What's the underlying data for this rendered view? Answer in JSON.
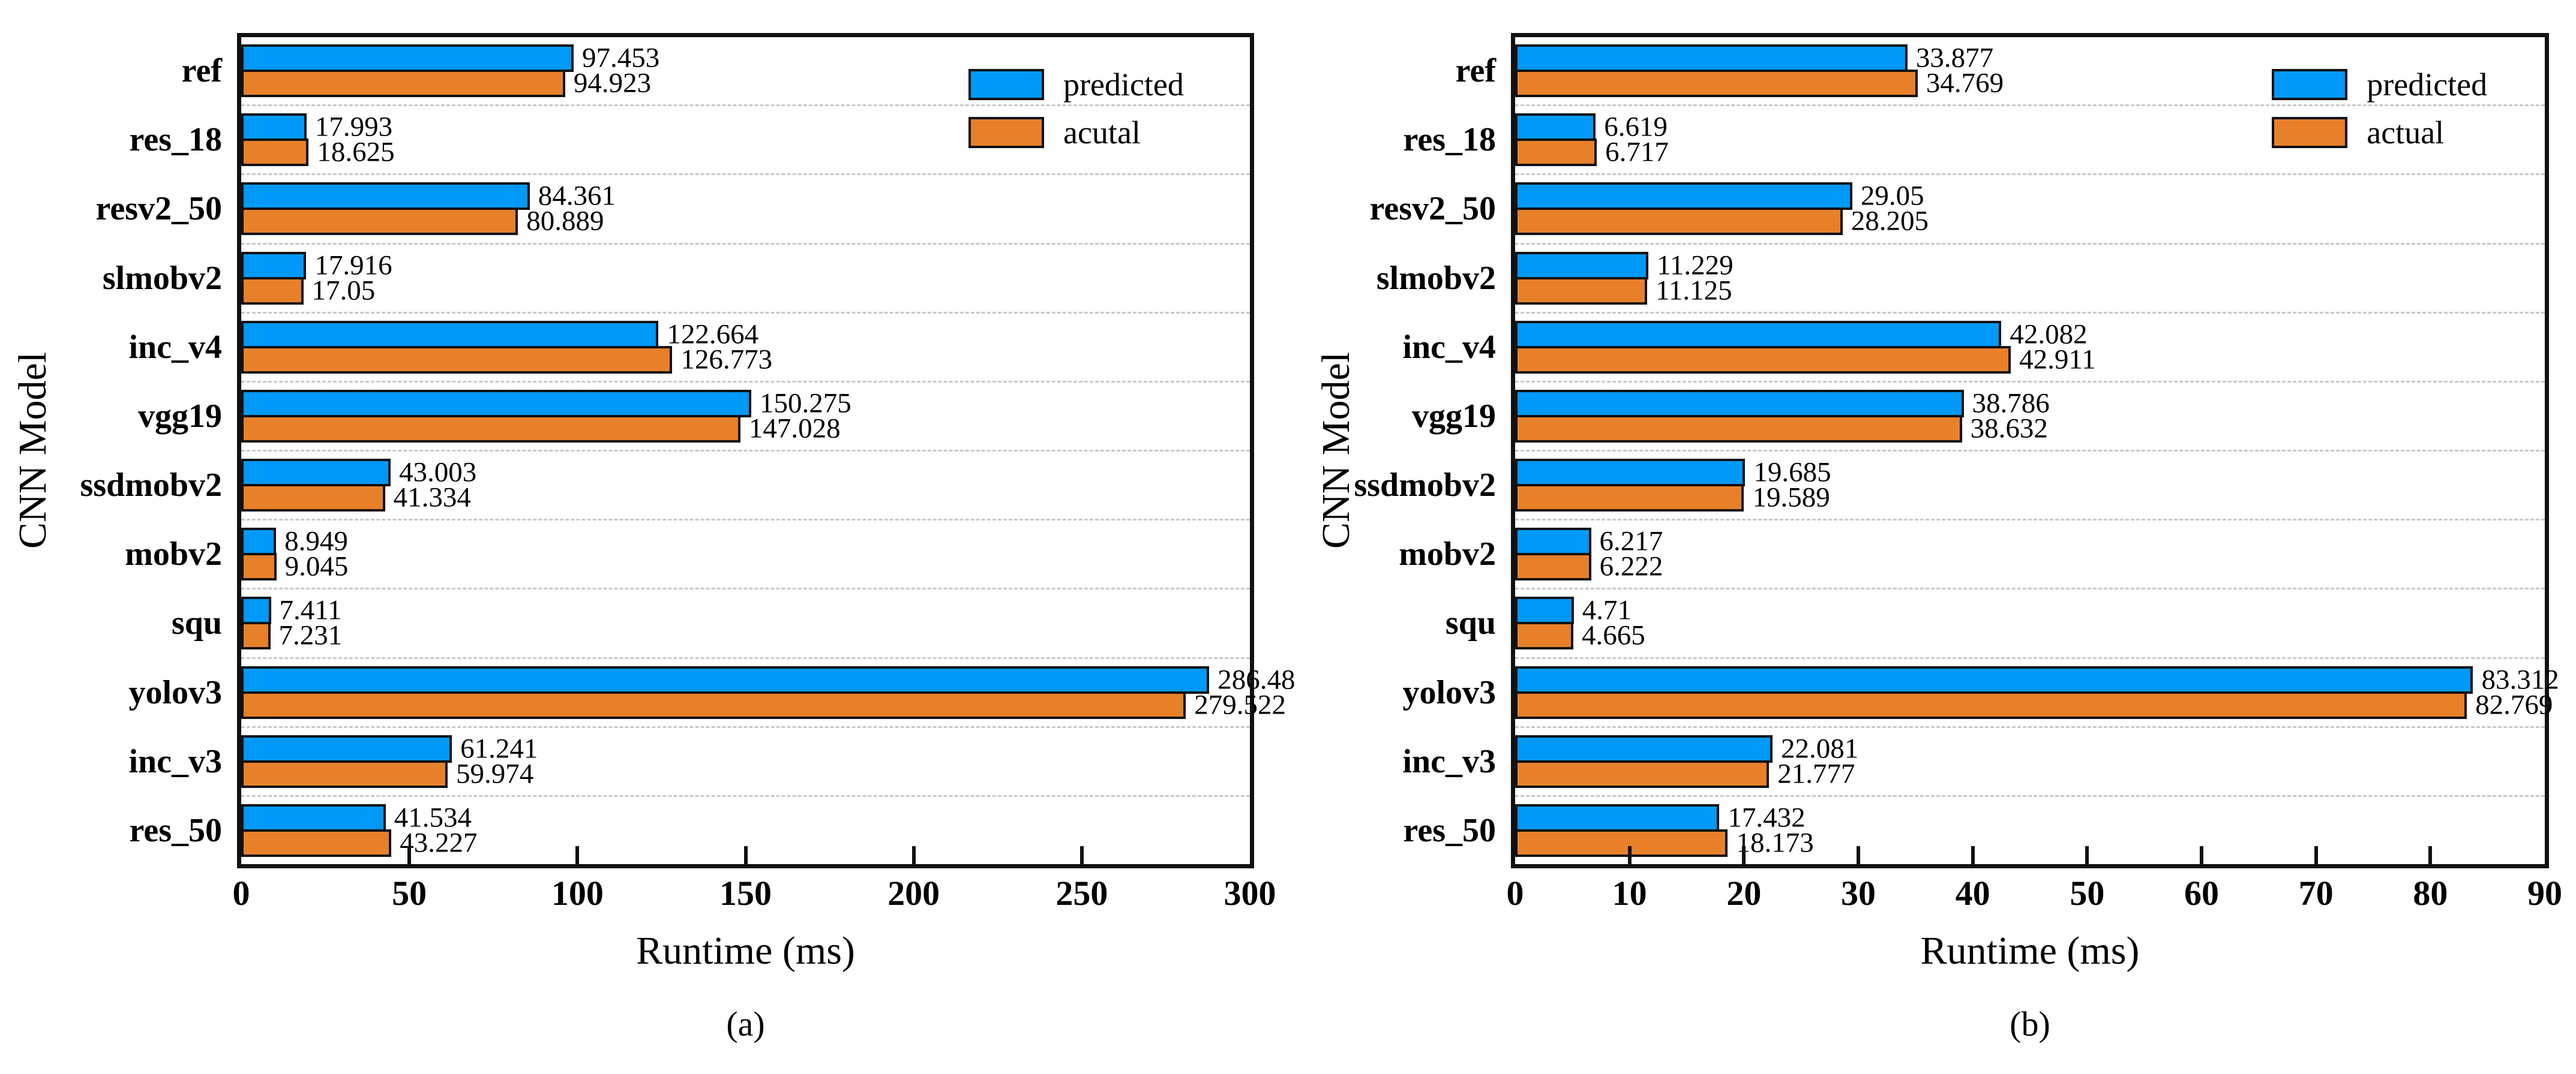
{
  "colors": {
    "predicted_bar": "#0099F8",
    "actual_bar": "#E8802A",
    "bar_outline": "#111111",
    "axis_spine": "#111111",
    "gridline": "#c9c9c9",
    "background": "#ffffff",
    "text": "#000000"
  },
  "chart_data": [
    {
      "type": "bar",
      "orientation": "horizontal",
      "caption": "(a)",
      "xlabel": "Runtime (ms)",
      "ylabel": "CNN Model",
      "xlim": [
        0,
        300
      ],
      "xticks": [
        0,
        50,
        100,
        150,
        200,
        250,
        300
      ],
      "grid": "dashed separators between categories",
      "legend_position": "top-right inside plot",
      "categories": [
        "ref",
        "res_18",
        "resv2_50",
        "slmobv2",
        "inc_v4",
        "vgg19",
        "ssdmobv2",
        "mobv2",
        "squ",
        "yolov3",
        "inc_v3",
        "res_50"
      ],
      "series": [
        {
          "name": "predicted",
          "color": "#0099F8",
          "values": [
            97.453,
            17.993,
            84.361,
            17.916,
            122.664,
            150.275,
            43.003,
            8.949,
            7.411,
            286.48,
            61.241,
            41.534
          ]
        },
        {
          "name": "acutal",
          "color": "#E8802A",
          "values": [
            94.923,
            18.625,
            80.889,
            17.05,
            126.773,
            147.028,
            41.334,
            9.045,
            7.231,
            279.522,
            59.974,
            43.227
          ]
        }
      ]
    },
    {
      "type": "bar",
      "orientation": "horizontal",
      "caption": "(b)",
      "xlabel": "Runtime (ms)",
      "ylabel": "CNN Model",
      "xlim": [
        0,
        90
      ],
      "xticks": [
        0,
        10,
        20,
        30,
        40,
        50,
        60,
        70,
        80,
        90
      ],
      "grid": "dashed separators between categories",
      "legend_position": "top-right inside plot",
      "categories": [
        "ref",
        "res_18",
        "resv2_50",
        "slmobv2",
        "inc_v4",
        "vgg19",
        "ssdmobv2",
        "mobv2",
        "squ",
        "yolov3",
        "inc_v3",
        "res_50"
      ],
      "series": [
        {
          "name": "predicted",
          "color": "#0099F8",
          "values": [
            33.877,
            6.619,
            29.05,
            11.229,
            42.082,
            38.786,
            19.685,
            6.217,
            4.71,
            83.312,
            22.081,
            17.432
          ]
        },
        {
          "name": "actual",
          "color": "#E8802A",
          "values": [
            34.769,
            6.717,
            28.205,
            11.125,
            42.911,
            38.632,
            19.589,
            6.222,
            4.665,
            82.769,
            21.777,
            18.173
          ]
        }
      ]
    }
  ]
}
